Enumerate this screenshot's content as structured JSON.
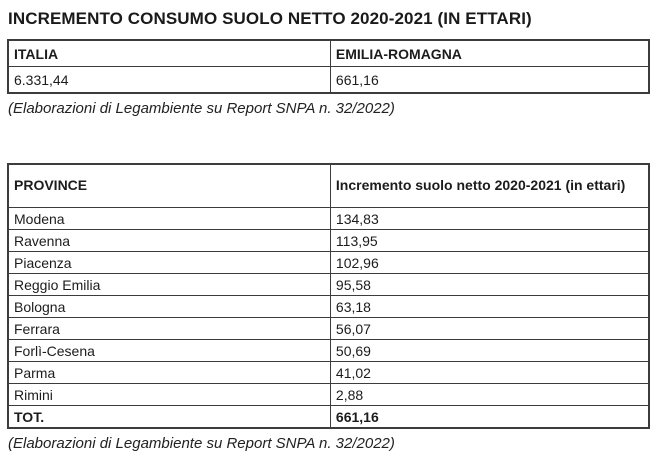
{
  "page": {
    "title": "INCREMENTO CONSUMO SUOLO NETTO 2020-2021 (IN ETTARI)"
  },
  "summary_table": {
    "columns": [
      "ITALIA",
      "EMILIA-ROMAGNA"
    ],
    "values": [
      "6.331,44",
      "661,16"
    ],
    "caption": "(Elaborazioni di Legambiente su Report SNPA n. 32/2022)"
  },
  "province_table": {
    "columns": [
      "PROVINCE",
      "Incremento suolo netto 2020-2021 (in ettari)"
    ],
    "rows": [
      {
        "label": "Modena",
        "value": "134,83"
      },
      {
        "label": "Ravenna",
        "value": "113,95"
      },
      {
        "label": "Piacenza",
        "value": "102,96"
      },
      {
        "label": "Reggio Emilia",
        "value": "95,58"
      },
      {
        "label": "Bologna",
        "value": "63,18"
      },
      {
        "label": "Ferrara",
        "value": "56,07"
      },
      {
        "label": "Forlì-Cesena",
        "value": "50,69"
      },
      {
        "label": "Parma",
        "value": "41,02"
      },
      {
        "label": "Rimini",
        "value": "2,88"
      }
    ],
    "total": {
      "label": "TOT.",
      "value": "661,16"
    },
    "caption": "(Elaborazioni di Legambiente su Report SNPA n. 32/2022)"
  }
}
